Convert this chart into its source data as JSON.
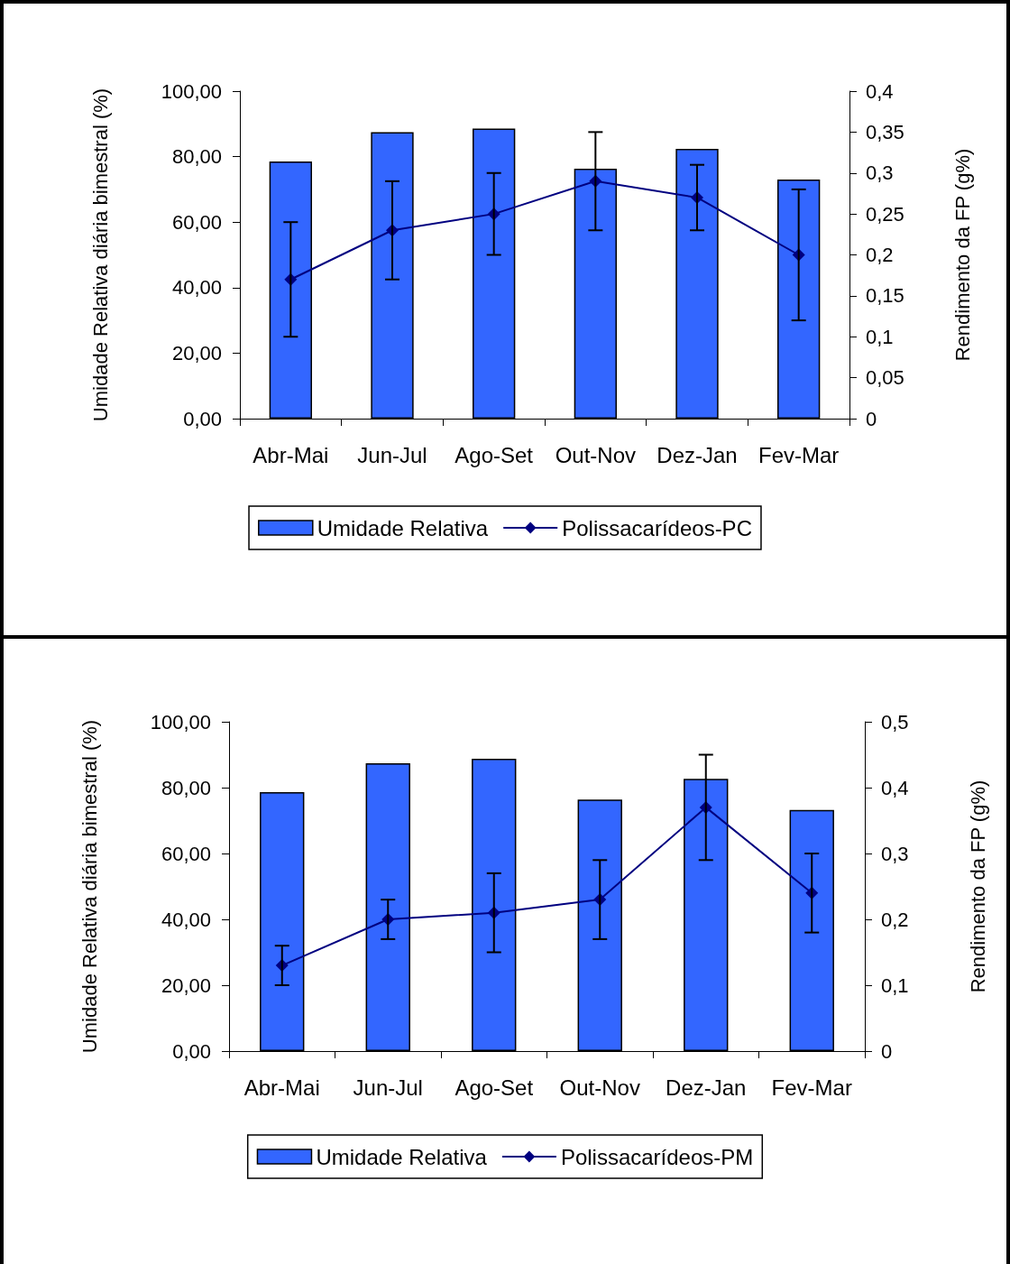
{
  "chart_data": [
    {
      "type": "bar",
      "categories": [
        "Abr-Mai",
        "Jun-Jul",
        "Ago-Set",
        "Out-Nov",
        "Dez-Jan",
        "Fev-Mar"
      ],
      "ylabel": "Umidade Relativa diária bimestral (%)",
      "y2label": "Rendimento da FP (g%)",
      "ylim": [
        0,
        100
      ],
      "yticks": [
        {
          "value": 0,
          "label": "0,00"
        },
        {
          "value": 20,
          "label": "20,00"
        },
        {
          "value": 40,
          "label": "40,00"
        },
        {
          "value": 60,
          "label": "60,00"
        },
        {
          "value": 80,
          "label": "80,00"
        },
        {
          "value": 100,
          "label": "100,00"
        }
      ],
      "y2lim": [
        0,
        0.4
      ],
      "y2ticks": [
        0,
        {
          "value": 0.05,
          "label": "0,05"
        },
        {
          "value": 0.1,
          "label": "0,1"
        },
        {
          "value": 0.15,
          "label": "0,15"
        },
        {
          "value": 0.2,
          "label": "0,2"
        },
        {
          "value": 0.25,
          "label": "0,25"
        },
        {
          "value": 0.3,
          "label": "0,3"
        },
        {
          "value": 0.35,
          "label": "0,35"
        },
        {
          "value": 0.4,
          "label": "0,4"
        }
      ],
      "series": [
        {
          "name": "Umidade Relativa",
          "color": "#3366ff",
          "values": [
            78.5,
            87.5,
            88.6,
            76.3,
            82.4,
            73.0
          ]
        },
        {
          "name": "Polissacarídeos-PC",
          "type": "line",
          "axis": "y2",
          "color": "#000080",
          "values": [
            0.17,
            0.23,
            0.25,
            0.29,
            0.27,
            0.2
          ],
          "errors": [
            [
              0.1,
              0.24
            ],
            [
              0.17,
              0.29
            ],
            [
              0.2,
              0.3
            ],
            [
              0.23,
              0.35
            ],
            [
              0.23,
              0.31
            ],
            [
              0.12,
              0.28
            ]
          ]
        }
      ],
      "marker": "diamond",
      "line_style": "solid",
      "legend": "bottom",
      "grid": false
    },
    {
      "type": "bar",
      "categories": [
        "Abr-Mai",
        "Jun-Jul",
        "Ago-Set",
        "Out-Nov",
        "Dez-Jan",
        "Fev-Mar"
      ],
      "ylabel": "Umidade Relativa diária bimestral (%)",
      "y2label": "Rendimento da FP (g%)",
      "ylim": [
        0,
        100
      ],
      "yticks": [
        {
          "value": 0,
          "label": "0,00"
        },
        {
          "value": 20,
          "label": "20,00"
        },
        {
          "value": 40,
          "label": "40,00"
        },
        {
          "value": 60,
          "label": "60,00"
        },
        {
          "value": 80,
          "label": "80,00"
        },
        {
          "value": 100,
          "label": "100,00"
        }
      ],
      "y2lim": [
        0,
        0.5
      ],
      "y2ticks": [
        0,
        {
          "value": 0.1,
          "label": "0,1"
        },
        {
          "value": 0.2,
          "label": "0,2"
        },
        {
          "value": 0.3,
          "label": "0,3"
        },
        {
          "value": 0.4,
          "label": "0,4"
        },
        {
          "value": 0.5,
          "label": "0,5"
        }
      ],
      "series": [
        {
          "name": "Umidade Relativa",
          "color": "#3366ff",
          "values": [
            78.6,
            87.4,
            88.8,
            76.4,
            82.7,
            73.2
          ]
        },
        {
          "name": "Polissacarídeos-PM",
          "type": "line",
          "axis": "y2",
          "color": "#000080",
          "values": [
            0.13,
            0.2,
            0.21,
            0.23,
            0.37,
            0.24
          ],
          "errors": [
            [
              0.1,
              0.16
            ],
            [
              0.17,
              0.23
            ],
            [
              0.15,
              0.27
            ],
            [
              0.17,
              0.29
            ],
            [
              0.29,
              0.45
            ],
            [
              0.18,
              0.3
            ]
          ]
        }
      ],
      "marker": "diamond",
      "line_style": "solid",
      "legend": "bottom",
      "grid": false
    }
  ]
}
